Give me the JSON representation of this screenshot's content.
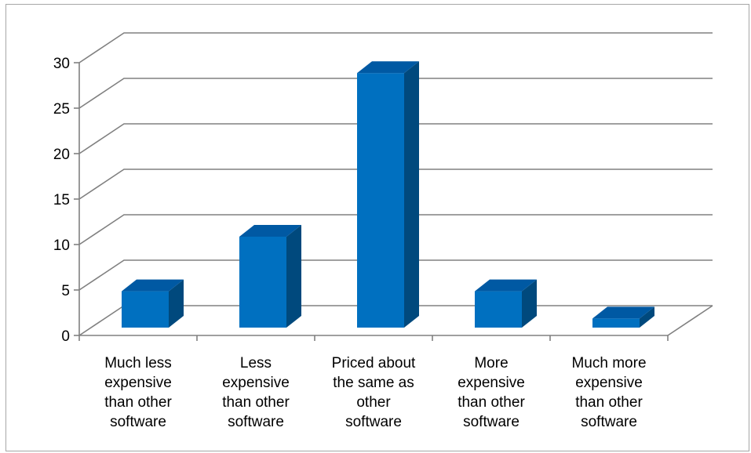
{
  "chart_data": {
    "type": "bar",
    "title": "",
    "xlabel": "",
    "ylabel": "",
    "categories": [
      "Much less expensive than other software",
      "Less expensive than other software",
      "Priced about the same as other software",
      "More expensive than other software",
      "Much more expensive than other software"
    ],
    "category_lines": [
      [
        "Much less",
        "expensive",
        "than other",
        "software"
      ],
      [
        "Less",
        "expensive",
        "than other",
        "software"
      ],
      [
        "Priced about",
        "the same as",
        "other",
        "software"
      ],
      [
        "More",
        "expensive",
        "than other",
        "software"
      ],
      [
        "Much more",
        "expensive",
        "than other",
        "software"
      ]
    ],
    "values": [
      4,
      10,
      28,
      4,
      1
    ],
    "ylim": [
      0,
      30
    ],
    "yticks": [
      "0",
      "5",
      "10",
      "15",
      "20",
      "25",
      "30"
    ],
    "grid": true,
    "legend": "none",
    "style": "3d",
    "colors": {
      "front": "#0070C0",
      "side": "#00497D",
      "top": "#0059A3",
      "grid": "#808080"
    }
  }
}
